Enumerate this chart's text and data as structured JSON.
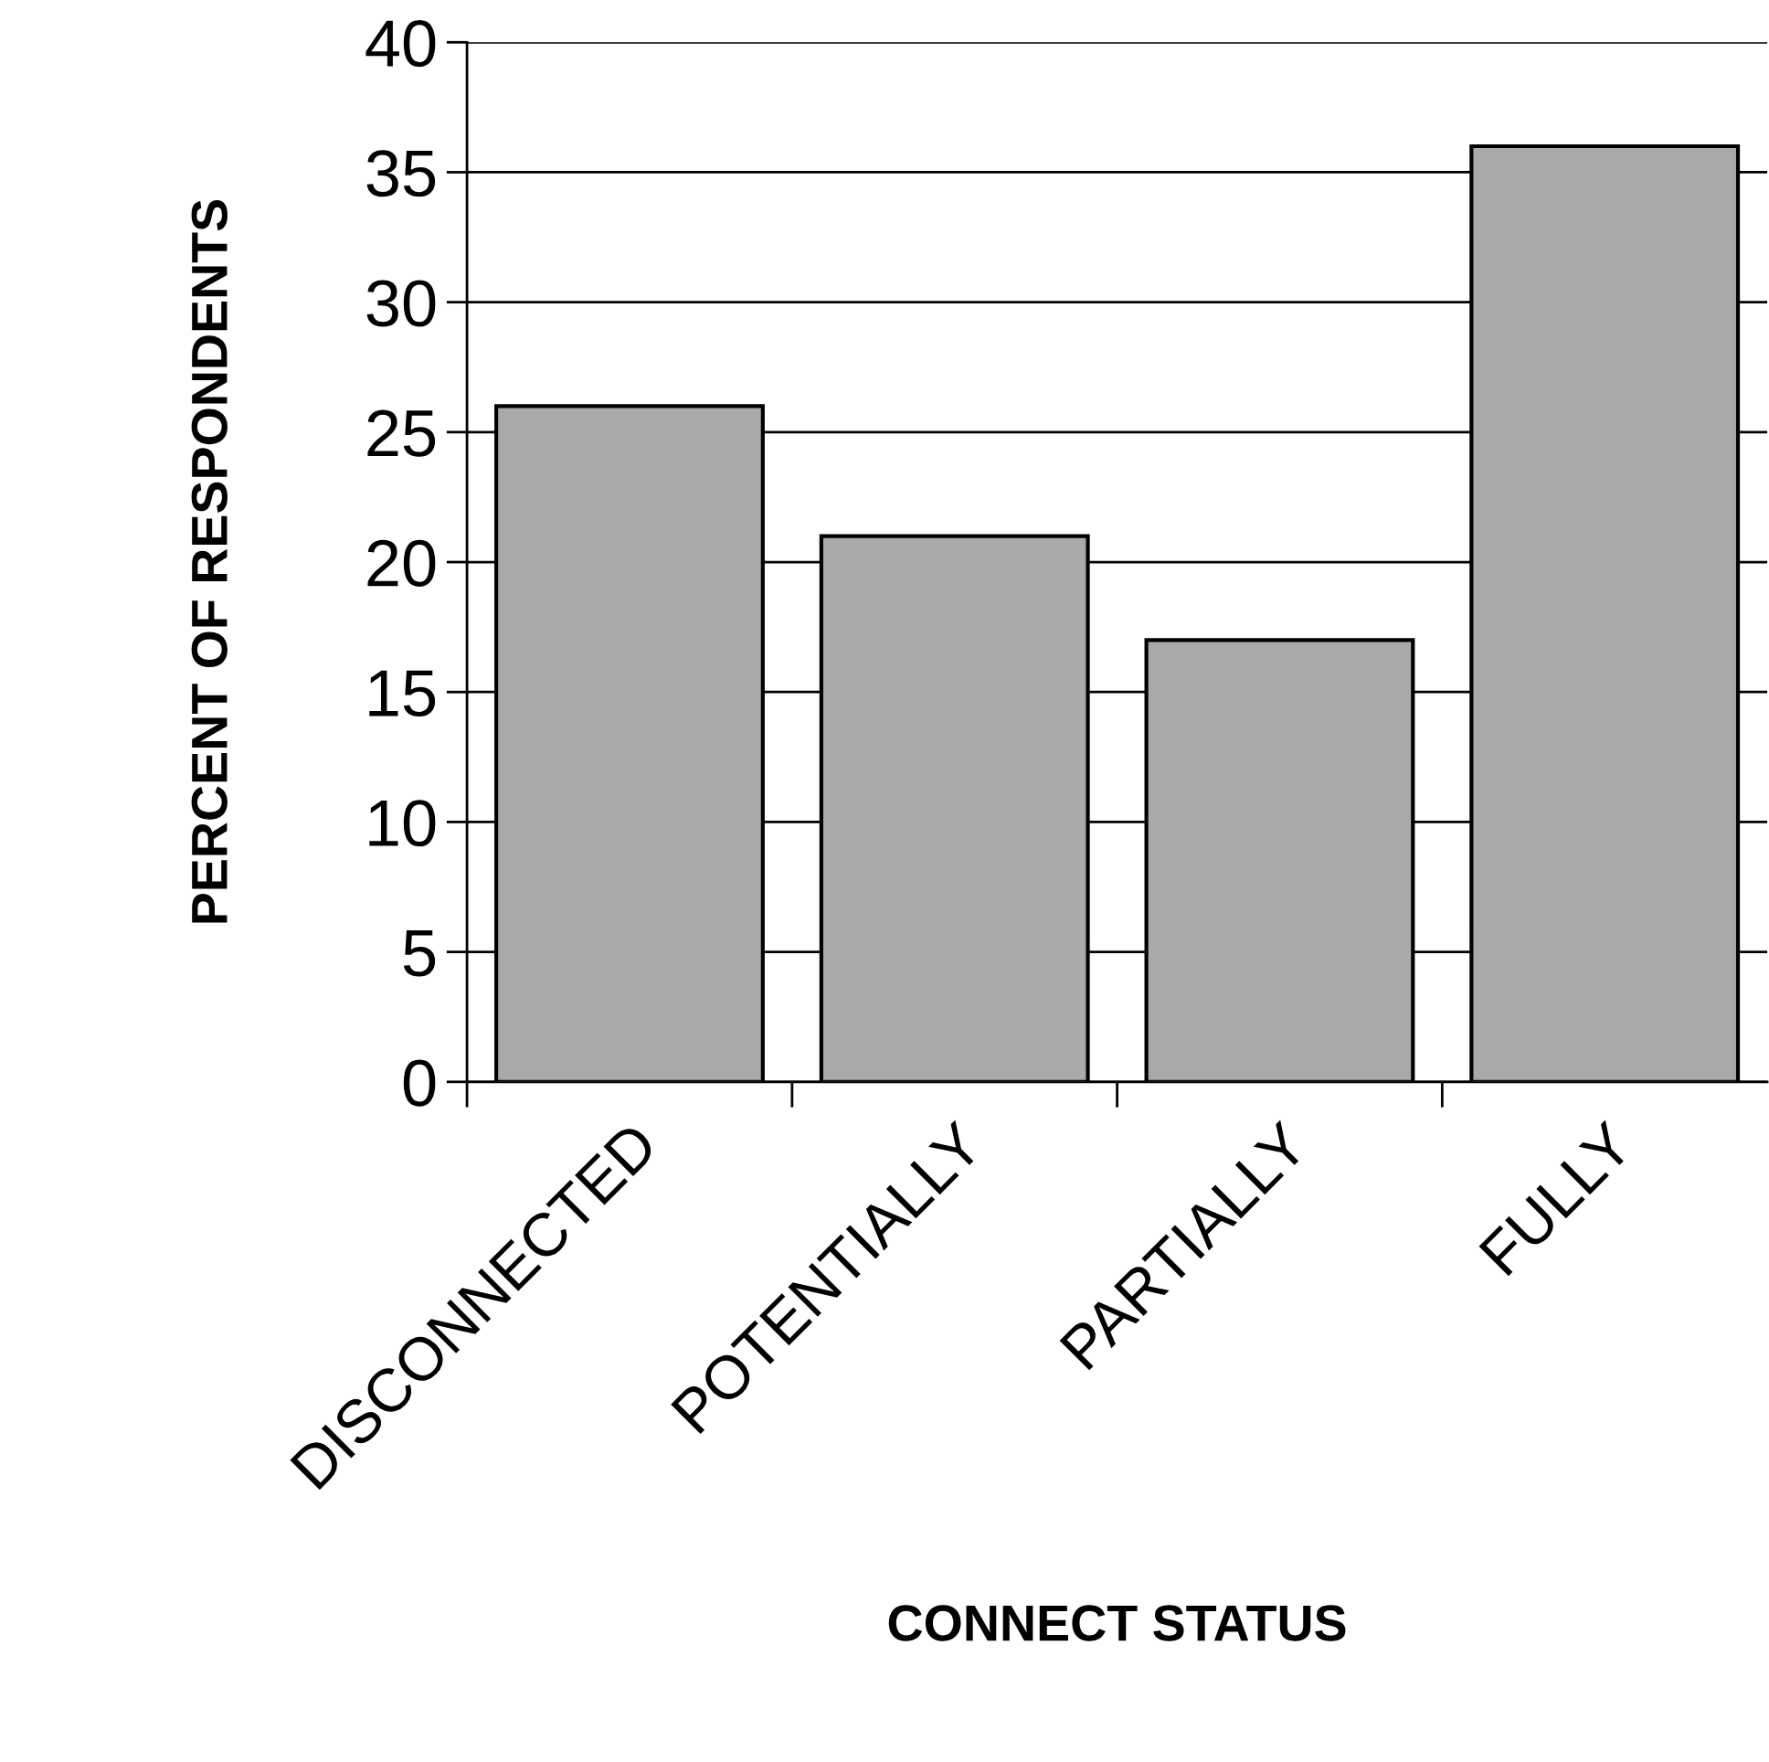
{
  "chart_data": {
    "type": "bar",
    "xlabel": "CONNECT STATUS",
    "ylabel": "PERCENT OF RESPONDENTS",
    "categories": [
      "DISCONNECTED",
      "POTENTIALLY",
      "PARTIALLY",
      "FULLY"
    ],
    "values": [
      26,
      21,
      17,
      36
    ],
    "color": "#a9a9a9",
    "ylim": [
      0,
      40
    ],
    "yticks": [
      0,
      5,
      10,
      15,
      20,
      25,
      30,
      35,
      40
    ],
    "grid": "y"
  }
}
